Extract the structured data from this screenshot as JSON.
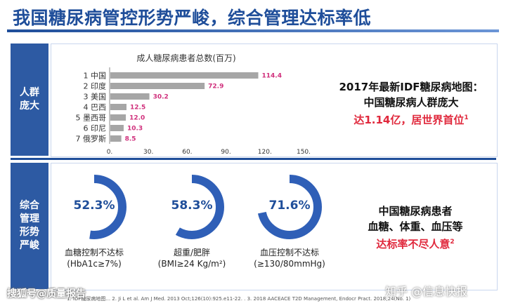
{
  "title": "我国糖尿病管控形势严峻，综合管理达标率低",
  "section1_label": "人群\n庞大",
  "section2_label": "综合\n管理\n形势\n严峻",
  "chart_data": {
    "type": "bar",
    "orientation": "horizontal",
    "title": "成人糖尿病患者总数(百万)",
    "categories": [
      "1 中国",
      "2 印度",
      "3 美国",
      "4 巴西",
      "5 墨西哥",
      "6 印尼",
      "7 俄罗斯"
    ],
    "values": [
      114.4,
      72.9,
      30.2,
      12.5,
      12.0,
      10.3,
      8.5
    ],
    "value_labels": [
      "114.4",
      "72.9",
      "30.2",
      "12.5",
      "12.0",
      "10.3",
      "8.5"
    ],
    "xlim": [
      0,
      150
    ],
    "xticks": [
      "0.",
      "30.",
      "60.",
      "90.",
      "120.",
      "150."
    ],
    "grid": false,
    "bar_color": "#a6a6a6",
    "label_color": "#d0307c"
  },
  "right_top": {
    "line1": "2017年最新IDF糖尿病地图：",
    "line2": "中国糖尿病人群庞大",
    "line3": "达1.14亿，居世界首位",
    "sup": "1"
  },
  "gauges": [
    {
      "value": "52.3%",
      "fraction": 0.523,
      "label1": "血糖控制不达标",
      "label2": "(HbA1c≥7%)"
    },
    {
      "value": "58.3%",
      "fraction": 0.583,
      "label1": "超重/肥胖",
      "label2": "(BMI≥24 Kg/m²)"
    },
    {
      "value": "71.6%",
      "fraction": 0.716,
      "label1": "血压控制不达标",
      "label2": "(≥130/80mmHg)"
    }
  ],
  "right_bottom": {
    "line1": "中国糖尿病患者",
    "line2": "血糖、体重、血压等",
    "line3": "达标率不尽人意",
    "sup": "2"
  },
  "footnote": "1. IDF糖尿病地图... 2. Ji L et al. Am J Med. 2013 Oct;126(10):925.e11-22. . 3. 2018 AACEACE T2D Management, Endocr Pract. 2018;24(No. 1)",
  "watermark_left": "搜狐号@质量报告",
  "watermark_right": "知乎 @信息快报",
  "colors": {
    "accent": "#1f4e9a",
    "gauge": "#2f5fb7",
    "red": "#e0283c"
  }
}
